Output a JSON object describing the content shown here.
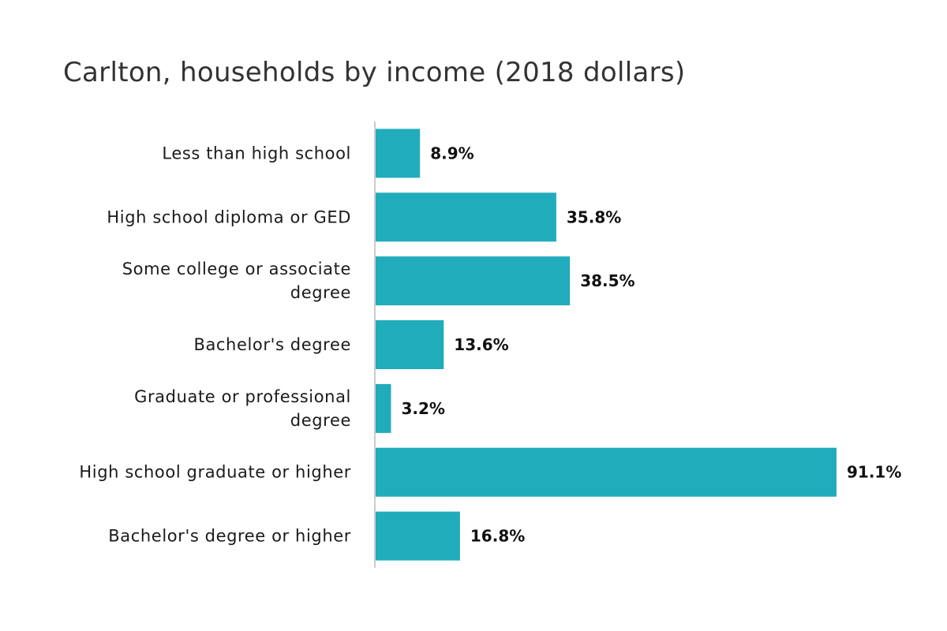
{
  "chart_data": {
    "type": "bar",
    "orientation": "horizontal",
    "title": "Carlton, households by income (2018 dollars)",
    "xlabel": "",
    "ylabel": "",
    "categories": [
      "Less than high school",
      "High school diploma or GED",
      "Some college or associate degree",
      "Bachelor's degree",
      "Graduate or professional degree",
      "High school graduate or higher",
      "Bachelor's degree or higher"
    ],
    "category_lines": [
      [
        "Less than high school"
      ],
      [
        "High school diploma or GED"
      ],
      [
        "Some college or associate",
        "degree"
      ],
      [
        "Bachelor's degree"
      ],
      [
        "Graduate or professional",
        "degree"
      ],
      [
        "High school graduate or higher"
      ],
      [
        "Bachelor's degree or higher"
      ]
    ],
    "values": [
      8.9,
      35.8,
      38.5,
      13.6,
      3.2,
      91.1,
      16.8
    ],
    "value_labels": [
      "8.9%",
      "35.8%",
      "38.5%",
      "13.6%",
      "3.2%",
      "91.1%",
      "16.8%"
    ],
    "xlim": [
      0,
      100
    ],
    "grid": false,
    "legend": "none",
    "colors": {
      "bar": "#20acbb",
      "axis": "#cccccc"
    }
  }
}
